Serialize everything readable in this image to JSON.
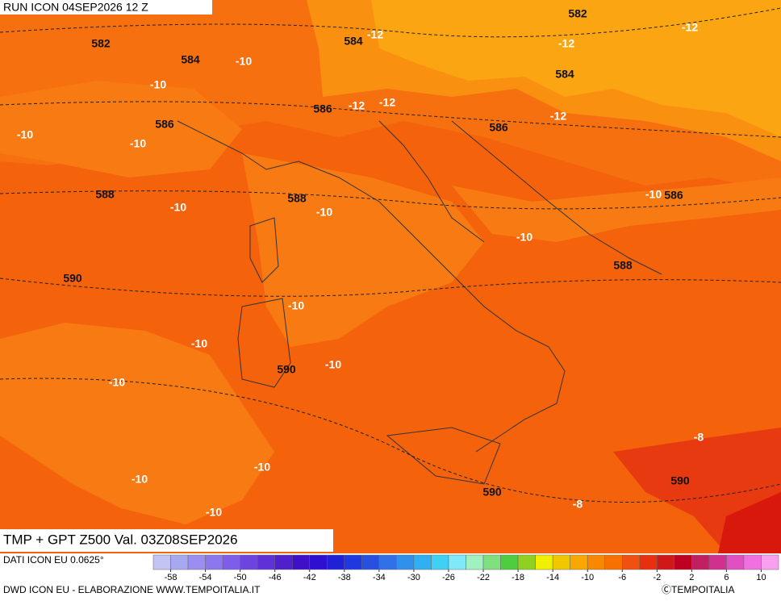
{
  "header": {
    "run": "RUN ICON 04SEP2026 12 Z"
  },
  "map": {
    "title": "TMP + GPT Z500 Val. 03Z08SEP2026",
    "labels": [
      582,
      584,
      584,
      -12,
      582,
      -12,
      -12,
      -10,
      -10,
      584,
      586,
      -12,
      -12,
      586,
      -10,
      -10,
      586,
      -12,
      588,
      588,
      -10,
      -10,
      -10,
      586,
      -10,
      588,
      590,
      -10,
      -10,
      590,
      -10,
      -10,
      -8,
      -10,
      -10,
      590,
      590,
      -8,
      -10
    ]
  },
  "scale": {
    "source": "DATI ICON EU 0.0625°",
    "range": [
      -60,
      12
    ],
    "ticks": [
      -58,
      -54,
      -50,
      -46,
      -42,
      -38,
      -34,
      -30,
      -26,
      -22,
      -18,
      -14,
      -10,
      -6,
      -2,
      2,
      6,
      10
    ],
    "colors": [
      "#c4c4f4",
      "#a8a8f0",
      "#9a8ef0",
      "#8c78ec",
      "#7e5ee8",
      "#6e44e0",
      "#6030d8",
      "#5020cc",
      "#4010c8",
      "#3010d0",
      "#2020d8",
      "#2038e0",
      "#2850e0",
      "#3070e8",
      "#3090ec",
      "#30b0f0",
      "#40d0f4",
      "#80e8f8",
      "#a0f0c0",
      "#80e080",
      "#50cc40",
      "#90d020",
      "#f0f000",
      "#f0c800",
      "#f8a800",
      "#f88800",
      "#f87000",
      "#f05010",
      "#e83010",
      "#d01818",
      "#c00020",
      "#c02060",
      "#d03090",
      "#e050c0",
      "#f070e0",
      "#f8a0f0"
    ]
  },
  "footer": {
    "credit": "DWD ICON EU - ELABORAZIONE WWW.TEMPOITALIA.IT",
    "brand": "ⒸTEMPOITALIA"
  }
}
